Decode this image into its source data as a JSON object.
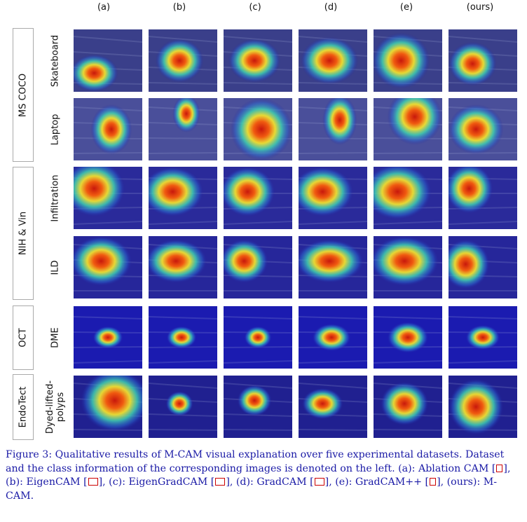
{
  "columns": [
    "(a)",
    "(b)",
    "(c)",
    "(d)",
    "(e)",
    "(ours)"
  ],
  "datasets": [
    {
      "label": "MS COCO",
      "rows": [
        0,
        1
      ]
    },
    {
      "label": "NIH & Vin",
      "rows": [
        2,
        3
      ]
    },
    {
      "label": "OCT",
      "rows": [
        4
      ]
    },
    {
      "label": "EndoTect",
      "rows": [
        5
      ]
    }
  ],
  "rows": [
    {
      "class_label": "Skateboard"
    },
    {
      "class_label": "Laptop"
    },
    {
      "class_label": "Infiltration"
    },
    {
      "class_label": "ILD"
    },
    {
      "class_label": "DME"
    },
    {
      "class_label": "Dyed-lifted-polyps",
      "class_label_lines": [
        "Dyed-lifted-",
        "polyps"
      ]
    }
  ],
  "caption": {
    "part1": "Figure 3: Qualitative results of M-CAM visual explanation over five experimental datasets. Dataset and the class information of the corresponding images is denoted on the left. (a): Ablation CAM [",
    "part2": "], (b): EigenCAM [",
    "part3": "], (c): EigenGradCAM [",
    "part4": "], (d): GradCAM [",
    "part5": "], (e): GradCAM++ [",
    "part6": "], (ours): M-CAM."
  },
  "colors": {
    "caption_text": "#1a1aa6",
    "citation_box": "#cc0000",
    "heatmap_low": "#1a1aa0",
    "heatmap_high": "#e01a0a"
  }
}
